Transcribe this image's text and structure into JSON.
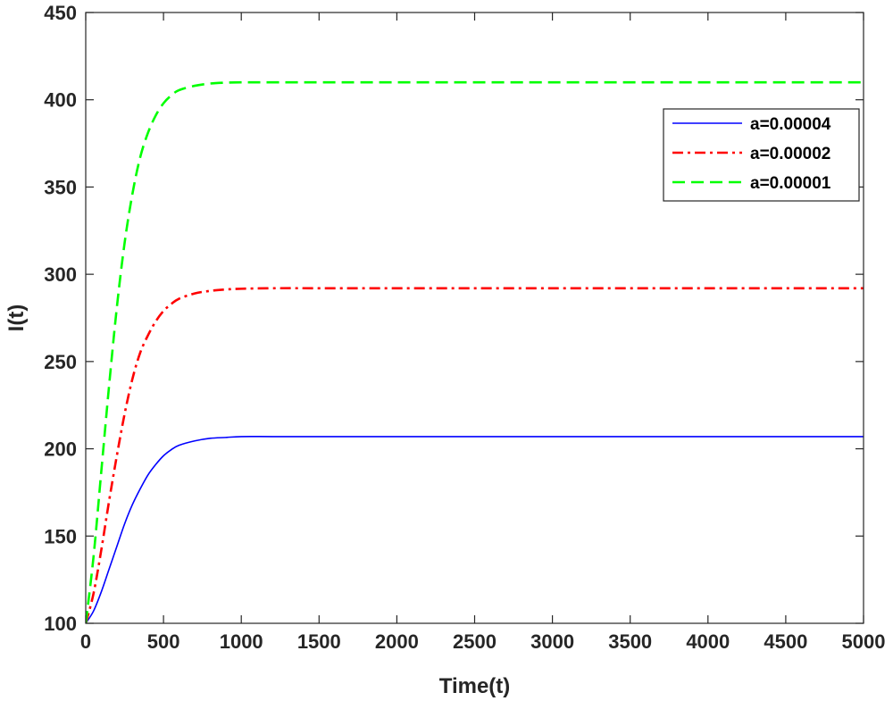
{
  "chart_data": {
    "type": "line",
    "title": "",
    "xlabel": "Time(t)",
    "ylabel": "I(t)",
    "xlim": [
      0,
      5000
    ],
    "ylim": [
      100,
      450
    ],
    "xticks": [
      0,
      500,
      1000,
      1500,
      2000,
      2500,
      3000,
      3500,
      4000,
      4500,
      5000
    ],
    "yticks": [
      100,
      150,
      200,
      250,
      300,
      350,
      400,
      450
    ],
    "grid": false,
    "legend_position": "top-right",
    "series": [
      {
        "name": "a=0.00004",
        "color": "#0000ff",
        "dash": "solid",
        "x": [
          0,
          50,
          100,
          150,
          200,
          250,
          300,
          350,
          400,
          450,
          500,
          550,
          600,
          700,
          800,
          900,
          1000,
          1200,
          1500,
          2000,
          3000,
          4000,
          5000
        ],
        "y": [
          100,
          107,
          118,
          131,
          144,
          157,
          168,
          177,
          185,
          191,
          196,
          199.5,
          202,
          204.5,
          206,
          206.5,
          207,
          207,
          207,
          207,
          207,
          207,
          207
        ]
      },
      {
        "name": "a=0.00002",
        "color": "#ff0000",
        "dash": "dashdot",
        "x": [
          0,
          50,
          100,
          150,
          200,
          250,
          300,
          350,
          400,
          450,
          500,
          550,
          600,
          700,
          800,
          900,
          1000,
          1200,
          1500,
          2000,
          3000,
          4000,
          5000
        ],
        "y": [
          100,
          117,
          142,
          170,
          196,
          220,
          240,
          255,
          265,
          273,
          279,
          283,
          286,
          289,
          290.5,
          291.3,
          291.7,
          292,
          292,
          292,
          292,
          292,
          292
        ]
      },
      {
        "name": "a=0.00001",
        "color": "#00ff00",
        "dash": "dashed",
        "x": [
          0,
          50,
          100,
          150,
          200,
          250,
          300,
          350,
          400,
          450,
          500,
          550,
          600,
          700,
          800,
          900,
          1000,
          1200,
          1500,
          2000,
          3000,
          4000,
          5000
        ],
        "y": [
          100,
          138,
          187,
          236,
          281,
          318,
          346,
          367,
          381,
          391,
          398,
          402.5,
          405.5,
          408,
          409.3,
          409.8,
          410,
          410,
          410,
          410,
          410,
          410,
          410
        ]
      }
    ]
  }
}
